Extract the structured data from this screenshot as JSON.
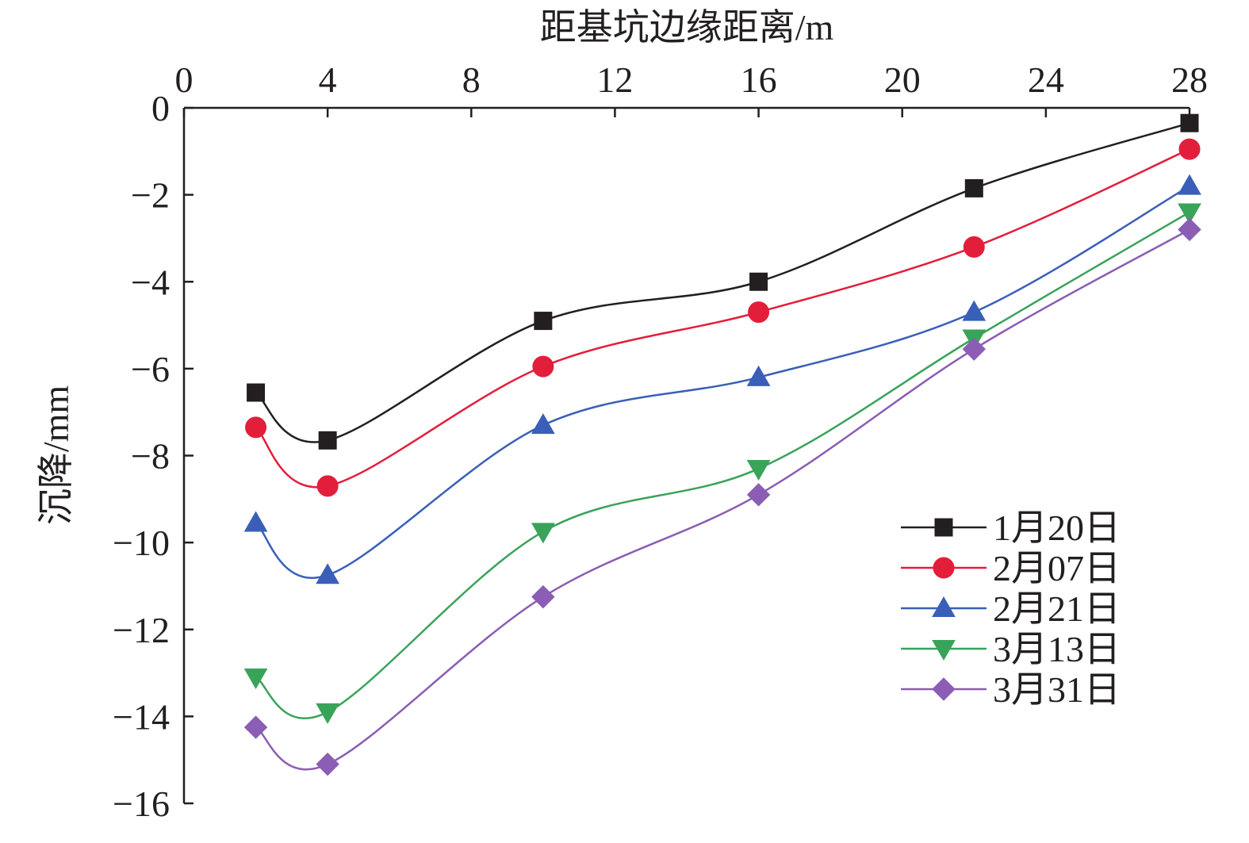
{
  "chart_data": {
    "type": "line",
    "xlabel": "距基坑边缘距离/m",
    "ylabel": "沉降/mm",
    "xlim": [
      0,
      28
    ],
    "ylim": [
      -16,
      0
    ],
    "xticks": [
      0,
      4,
      8,
      12,
      16,
      20,
      24,
      28
    ],
    "yticks": [
      0,
      -2,
      -4,
      -6,
      -8,
      -10,
      -12,
      -14,
      -16
    ],
    "xtick_labels": [
      "0",
      "4",
      "8",
      "12",
      "16",
      "20",
      "24",
      "28"
    ],
    "ytick_labels": [
      "0",
      "−2",
      "−4",
      "−6",
      "−8",
      "−10",
      "−12",
      "−14",
      "−16"
    ],
    "x_axis_position": "top",
    "grid": false,
    "legend_position": "lower-right",
    "x": [
      2,
      4,
      10,
      16,
      22,
      28
    ],
    "series": [
      {
        "name": "1月20日",
        "color": "#231f20",
        "marker": "square",
        "values": [
          -6.55,
          -7.65,
          -4.9,
          -4.0,
          -1.85,
          -0.35
        ]
      },
      {
        "name": "2月07日",
        "color": "#e31e3b",
        "marker": "circle",
        "values": [
          -7.35,
          -8.7,
          -5.95,
          -4.7,
          -3.2,
          -0.95
        ]
      },
      {
        "name": "2月21日",
        "color": "#3a5fb8",
        "marker": "triangle-up",
        "values": [
          -9.55,
          -10.75,
          -7.3,
          -6.2,
          -4.7,
          -1.8
        ]
      },
      {
        "name": "3月13日",
        "color": "#3aa35a",
        "marker": "triangle-down",
        "values": [
          -13.1,
          -13.9,
          -9.75,
          -8.3,
          -5.3,
          -2.4
        ]
      },
      {
        "name": "3月31日",
        "color": "#8b5db4",
        "marker": "diamond",
        "values": [
          -14.25,
          -15.1,
          -11.25,
          -8.9,
          -5.55,
          -2.8
        ]
      }
    ]
  }
}
